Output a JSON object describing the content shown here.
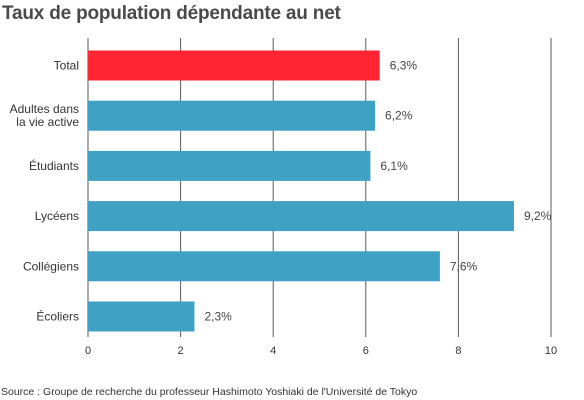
{
  "title": "Taux de population dépendante au net",
  "source": "Source : Groupe de recherche du professeur Hashimoto Yoshiaki de l'Université de Tokyo",
  "colors": {
    "highlight": "#ff2532",
    "bar": "#3fa1c4",
    "grid": "#5a5a5a"
  },
  "chart_data": {
    "type": "bar",
    "orientation": "horizontal",
    "title": "Taux de population dépendante au net",
    "categories": [
      [
        "Total"
      ],
      [
        "Adultes dans",
        "la vie active"
      ],
      [
        "Étudiants"
      ],
      [
        "Lycéens"
      ],
      [
        "Collégiens"
      ],
      [
        "Écoliers"
      ]
    ],
    "values": [
      6.3,
      6.2,
      6.1,
      9.2,
      7.6,
      2.3
    ],
    "value_labels": [
      "6,3%",
      "6,2%",
      "6,1%",
      "9,2%",
      "7,6%",
      "2,3%"
    ],
    "highlight_index": 0,
    "xlim": [
      0,
      10
    ],
    "xticks": [
      0,
      2,
      4,
      6,
      8,
      10
    ],
    "grid": true,
    "legend": "none"
  }
}
